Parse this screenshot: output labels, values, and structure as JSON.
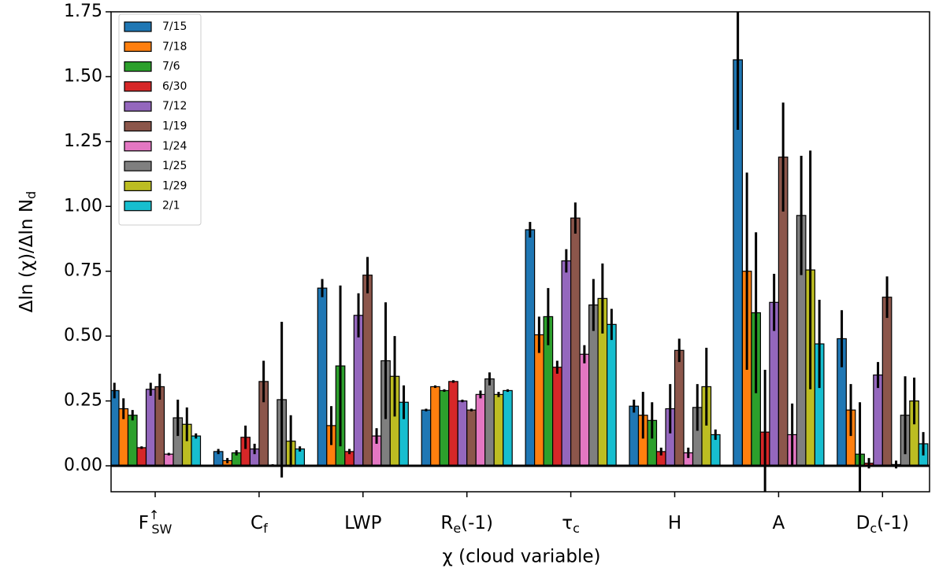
{
  "chart_data": {
    "type": "bar",
    "xlabel": "χ (cloud variable)",
    "ylabel": {
      "main": "Δln (χ)/Δln N",
      "sub": "d"
    },
    "categories": [
      {
        "main": "F",
        "sub": "SW",
        "sup": "↑"
      },
      {
        "main": "C",
        "sub": "f"
      },
      {
        "main": "LWP"
      },
      {
        "main": "R",
        "sub": "e",
        "after": "(-1)"
      },
      {
        "main": "τ",
        "sub": "c"
      },
      {
        "main": "H"
      },
      {
        "main": "A"
      },
      {
        "main": "D",
        "sub": "c",
        "after": "(-1)"
      }
    ],
    "series": [
      {
        "name": "7/15",
        "color": "#1f77b4",
        "values": [
          0.29,
          0.055,
          0.685,
          0.215,
          0.91,
          0.23,
          1.565,
          0.49
        ],
        "errors": [
          0.03,
          0.01,
          0.035,
          0.005,
          0.03,
          0.025,
          0.27,
          0.11
        ]
      },
      {
        "name": "7/18",
        "color": "#ff7f0e",
        "values": [
          0.22,
          0.02,
          0.155,
          0.305,
          0.505,
          0.195,
          0.75,
          0.215
        ],
        "errors": [
          0.04,
          0.01,
          0.075,
          0.005,
          0.07,
          0.09,
          0.38,
          0.1
        ]
      },
      {
        "name": "7/6",
        "color": "#2ca02c",
        "values": [
          0.195,
          0.05,
          0.385,
          0.29,
          0.575,
          0.175,
          0.59,
          0.045
        ],
        "errors": [
          0.02,
          0.01,
          0.31,
          0.005,
          0.11,
          0.07,
          0.31,
          0.2
        ]
      },
      {
        "name": "6/30",
        "color": "#d62728",
        "values": [
          0.07,
          0.11,
          0.055,
          0.325,
          0.38,
          0.055,
          0.13,
          0.01
        ],
        "errors": [
          0.005,
          0.045,
          0.01,
          0.005,
          0.025,
          0.015,
          0.24,
          0.02
        ]
      },
      {
        "name": "7/12",
        "color": "#9467bd",
        "values": [
          0.295,
          0.065,
          0.58,
          0.25,
          0.79,
          0.22,
          0.63,
          0.35
        ],
        "errors": [
          0.025,
          0.02,
          0.085,
          0.005,
          0.045,
          0.095,
          0.11,
          0.05
        ]
      },
      {
        "name": "1/19",
        "color": "#8c564b",
        "values": [
          0.305,
          0.325,
          0.735,
          0.215,
          0.955,
          0.445,
          1.19,
          0.65
        ],
        "errors": [
          0.05,
          0.08,
          0.07,
          0.005,
          0.06,
          0.045,
          0.21,
          0.08
        ]
      },
      {
        "name": "1/24",
        "color": "#e377c2",
        "values": [
          0.045,
          0.003,
          0.115,
          0.275,
          0.43,
          0.05,
          0.12,
          0.005
        ],
        "errors": [
          0.005,
          0.003,
          0.03,
          0.015,
          0.035,
          0.02,
          0.12,
          0.015
        ]
      },
      {
        "name": "1/25",
        "color": "#7f7f7f",
        "values": [
          0.185,
          0.255,
          0.405,
          0.335,
          0.62,
          0.225,
          0.965,
          0.195
        ],
        "errors": [
          0.07,
          0.3,
          0.225,
          0.025,
          0.1,
          0.09,
          0.23,
          0.15
        ]
      },
      {
        "name": "1/29",
        "color": "#bcbd22",
        "values": [
          0.16,
          0.095,
          0.345,
          0.275,
          0.645,
          0.305,
          0.755,
          0.25
        ],
        "errors": [
          0.065,
          0.1,
          0.155,
          0.01,
          0.135,
          0.15,
          0.46,
          0.09
        ]
      },
      {
        "name": "2/1",
        "color": "#17becf",
        "values": [
          0.115,
          0.065,
          0.245,
          0.29,
          0.545,
          0.12,
          0.47,
          0.085
        ],
        "errors": [
          0.01,
          0.01,
          0.065,
          0.005,
          0.06,
          0.02,
          0.17,
          0.045
        ]
      }
    ],
    "ylim": [
      -0.1,
      1.75
    ],
    "yticks": [
      {
        "value": 0,
        "label": "0.00"
      },
      {
        "value": 0.25,
        "label": "0.25"
      },
      {
        "value": 0.5,
        "label": "0.50"
      },
      {
        "value": 0.75,
        "label": "0.75"
      },
      {
        "value": 1,
        "label": "1.00"
      },
      {
        "value": 1.25,
        "label": "1.25"
      },
      {
        "value": 1.5,
        "label": "1.50"
      },
      {
        "value": 1.75,
        "label": "1.75"
      }
    ],
    "legend": "upper left"
  }
}
